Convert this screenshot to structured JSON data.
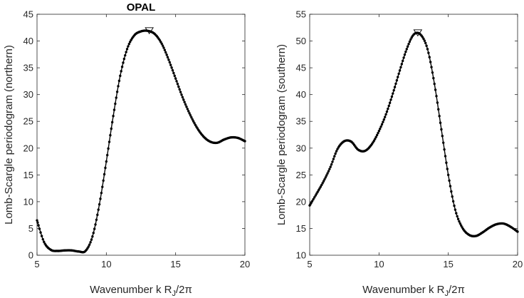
{
  "chart_data": [
    {
      "type": "line",
      "title": "OPAL",
      "xlabel": "Wavenumber k R",
      "xlabel_sub": "J",
      "xlabel_tail": "/2π",
      "ylabel": "Lomb-Scargle periodogram (northern)",
      "xlim": [
        5,
        20
      ],
      "ylim": [
        0,
        45
      ],
      "xticks": [
        "5",
        "10",
        "15",
        "20"
      ],
      "yticks": [
        "0",
        "5",
        "10",
        "15",
        "20",
        "25",
        "30",
        "35",
        "40",
        "45"
      ],
      "marker": "dot",
      "peak": {
        "x": 13.1,
        "y": 41.9,
        "symbol": "down-triangle"
      },
      "series": [
        {
          "name": "northern",
          "x": [
            5.0,
            5.5,
            6.0,
            6.5,
            7.0,
            7.5,
            8.0,
            8.5,
            9.0,
            9.5,
            10.0,
            10.5,
            11.0,
            11.5,
            12.0,
            12.5,
            13.0,
            13.5,
            14.0,
            14.5,
            15.0,
            15.5,
            16.0,
            16.5,
            17.0,
            17.5,
            18.0,
            18.5,
            19.0,
            19.5,
            20.0
          ],
          "y": [
            6.5,
            2.5,
            1.0,
            0.8,
            0.9,
            0.9,
            0.7,
            0.8,
            3.5,
            9.5,
            17.5,
            26.0,
            33.5,
            38.5,
            41.0,
            41.8,
            41.9,
            41.3,
            39.5,
            36.5,
            33.0,
            29.5,
            26.5,
            24.0,
            22.2,
            21.2,
            21.0,
            21.6,
            22.0,
            21.9,
            21.3
          ]
        }
      ]
    },
    {
      "type": "line",
      "title": "",
      "xlabel": "Wavenumber k R",
      "xlabel_sub": "J",
      "xlabel_tail": "/2π",
      "ylabel": "Lomb-Scargle periodogram (southern)",
      "xlim": [
        5,
        20
      ],
      "ylim": [
        10,
        55
      ],
      "xticks": [
        "5",
        "10",
        "15",
        "20"
      ],
      "yticks": [
        "10",
        "15",
        "20",
        "25",
        "30",
        "35",
        "40",
        "45",
        "50",
        "55"
      ],
      "marker": "dot",
      "peak": {
        "x": 12.8,
        "y": 51.5,
        "symbol": "down-triangle"
      },
      "series": [
        {
          "name": "southern",
          "x": [
            5.0,
            5.5,
            6.0,
            6.5,
            7.0,
            7.5,
            8.0,
            8.5,
            9.0,
            9.5,
            10.0,
            10.5,
            11.0,
            11.5,
            12.0,
            12.5,
            13.0,
            13.5,
            14.0,
            14.5,
            15.0,
            15.5,
            16.0,
            16.5,
            17.0,
            17.5,
            18.0,
            18.5,
            19.0,
            19.5,
            20.0
          ],
          "y": [
            19.3,
            21.5,
            23.8,
            26.5,
            29.8,
            31.3,
            31.2,
            29.7,
            29.5,
            30.8,
            33.2,
            36.3,
            40.2,
            44.5,
            48.5,
            51.2,
            51.2,
            48.5,
            42.0,
            33.5,
            25.0,
            18.5,
            15.2,
            13.8,
            13.6,
            14.3,
            15.2,
            15.8,
            15.9,
            15.3,
            14.4
          ]
        }
      ]
    }
  ]
}
